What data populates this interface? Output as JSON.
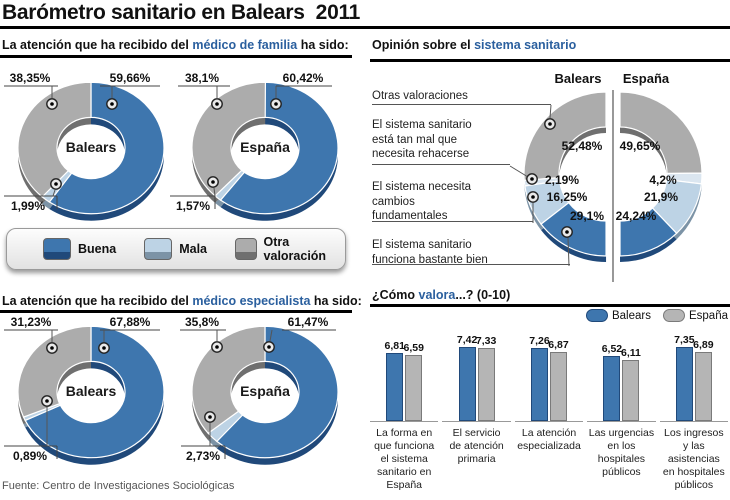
{
  "title": "Barómetro sanitario en Balears  2011",
  "source": "Fuente: Centro de Investigaciones Sociológicas",
  "colors": {
    "buena": "#3E76AE",
    "buenaDark": "#20497A",
    "mala": "#BDD3E5",
    "malaDark": "#7C93A6",
    "pale": "#DBE6F0",
    "paleDark": "#9FB0BF",
    "otra": "#ACACAC",
    "otraDark": "#6F6F6F",
    "accent": "#2A5F9E",
    "barGray": "#B5B5B5",
    "barGrayDark": "#7A7A7A"
  },
  "headings": {
    "familia": {
      "pre": "La atención que ha recibido del ",
      "accent": "médico de familia",
      "post": " ha sido:"
    },
    "especialista": {
      "pre": "La atención que ha recibido del ",
      "accent": "médico especialista",
      "post": " ha sido:"
    },
    "opinion": {
      "pre": "Opinión sobre el ",
      "accent": "sistema sanitario",
      "post": ""
    },
    "valora": {
      "pre": "¿Cómo ",
      "accent": "valora",
      "post": "...? (0-10)"
    }
  },
  "legend_box": [
    {
      "label": "Buena",
      "color_key": "buena"
    },
    {
      "label": "Mala",
      "color_key": "mala"
    },
    {
      "label": "Otra valoración",
      "color_key": "otra"
    }
  ],
  "opinion_columns": [
    "Balears",
    "España"
  ],
  "chart_data": [
    {
      "id": "medico_familia",
      "type": "pie",
      "variant": "donut-pair",
      "title": "La atención que ha recibido del médico de familia ha sido:",
      "slices": [
        "Buena",
        "Mala",
        "Otra valoración"
      ],
      "unit": "%",
      "groups": [
        {
          "name": "Balears",
          "values": [
            59.66,
            1.99,
            38.35
          ]
        },
        {
          "name": "España",
          "values": [
            60.42,
            1.57,
            38.1
          ]
        }
      ]
    },
    {
      "id": "medico_especialista",
      "type": "pie",
      "variant": "donut-pair",
      "title": "La atención que ha recibido del médico especialista ha sido:",
      "slices": [
        "Buena",
        "Mala",
        "Otra valoración"
      ],
      "unit": "%",
      "groups": [
        {
          "name": "Balears",
          "values": [
            67.88,
            0.89,
            31.23
          ]
        },
        {
          "name": "España",
          "values": [
            61.47,
            2.73,
            35.8
          ]
        }
      ]
    },
    {
      "id": "opinion_sistema",
      "type": "pie",
      "variant": "half-donut-pair",
      "title": "Opinión sobre el sistema sanitario",
      "unit": "%",
      "categories": [
        "Otras valoraciones",
        "El sistema sanitario\nestá tan mal que\nnecesita rehacerse",
        "El sistema necesita\ncambios\nfundamentales",
        "El sistema sanitario\nfunciona bastante bien"
      ],
      "groups": [
        {
          "name": "Balears",
          "values": [
            52.48,
            2.19,
            16.25,
            29.1
          ]
        },
        {
          "name": "España",
          "values": [
            49.65,
            4.2,
            21.9,
            24.24
          ]
        }
      ]
    },
    {
      "id": "como_valora",
      "type": "bar",
      "title": "¿Cómo valora...? (0-10)",
      "ylim": [
        0,
        10
      ],
      "legend_position": "top-right",
      "categories": [
        "La forma en\nque funciona\nel sistema\nsanitario en\nEspaña",
        "El servicio\nde atención\nprimaria",
        "La atención\nespecializada",
        "Las urgencias\nen los\nhospitales\npúblicos",
        "Los ingresos\ny las\nasistencias\nen hospitales\npúblicos"
      ],
      "series": [
        {
          "name": "Balears",
          "values": [
            6.81,
            7.42,
            7.26,
            6.52,
            7.35
          ]
        },
        {
          "name": "España",
          "values": [
            6.59,
            7.33,
            6.87,
            6.11,
            6.89
          ]
        }
      ]
    }
  ]
}
